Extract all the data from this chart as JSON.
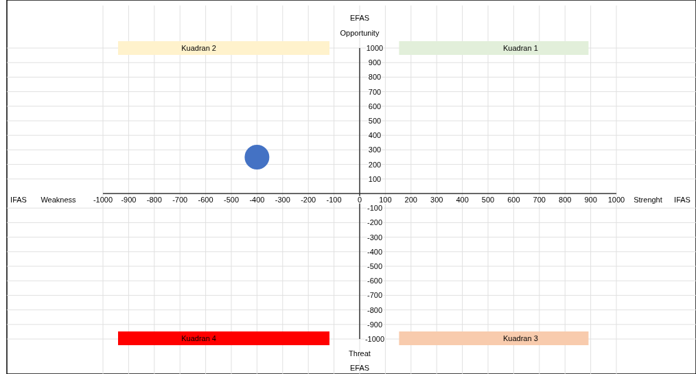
{
  "chart_data": {
    "type": "scatter",
    "annotations": [
      "EFAS",
      "Opportunity",
      "Kuadran 2",
      "Kuadran 1",
      "IFAS",
      "Weakness",
      "Strenght",
      "IFAS",
      "Kuadran 4",
      "Kuadran 3",
      "Threat",
      "EFAS"
    ],
    "x": [
      -400
    ],
    "series": [
      {
        "color": "#4472c4",
        "values": [
          250
        ]
      }
    ],
    "xlim": [
      -1000,
      1000
    ],
    "xticks": [
      -1000,
      -900,
      -800,
      -700,
      -600,
      -500,
      -400,
      -300,
      -200,
      -100,
      0,
      100,
      200,
      300,
      400,
      500,
      600,
      700,
      800,
      900,
      1000
    ],
    "ylim": [
      -1000,
      1000
    ],
    "yticks": [
      -1000,
      -900,
      -800,
      -700,
      -600,
      -500,
      -400,
      -300,
      -200,
      -100,
      100,
      200,
      300,
      400,
      500,
      600,
      700,
      800,
      900,
      1000
    ],
    "grid": true,
    "marker": "circle"
  }
}
